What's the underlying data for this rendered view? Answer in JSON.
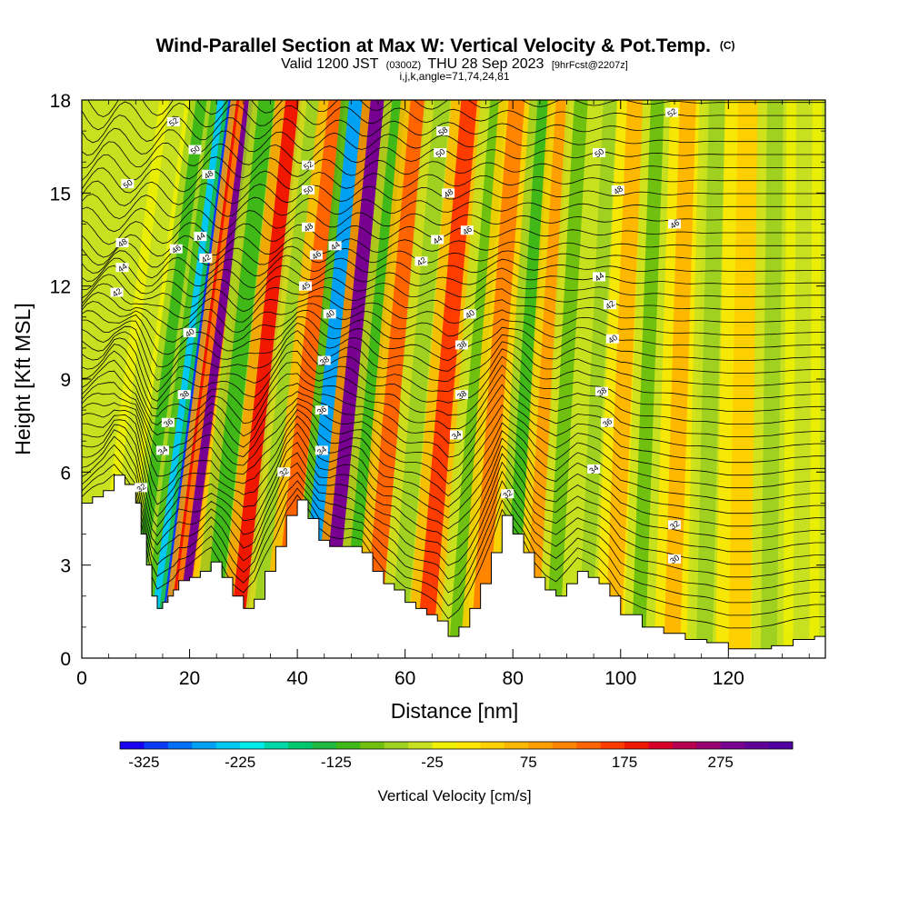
{
  "chart_data": {
    "type": "heatmap",
    "title": "Wind-Parallel Section at Max W: Vertical Velocity & Pot.Temp.",
    "title_suffix": "(C)",
    "subtitle_a": "Valid 1200 JST",
    "subtitle_b": "(0300Z)",
    "subtitle_c": "THU 28 Sep 2023",
    "subtitle_d": "[9hrFcst@2207z]",
    "subtitle2": "i,j,k,angle=71,74,24,81",
    "xlabel": "Distance [nm]",
    "ylabel": "Height [Kft MSL]",
    "xlim": [
      0,
      138
    ],
    "ylim": [
      0,
      18
    ],
    "x_ticks": [
      "0",
      "20",
      "40",
      "60",
      "80",
      "100",
      "120"
    ],
    "x_tick_values": [
      0,
      20,
      40,
      60,
      80,
      100,
      120
    ],
    "y_ticks": [
      "0",
      "3",
      "6",
      "9",
      "12",
      "15",
      "18"
    ],
    "y_tick_values": [
      0,
      3,
      6,
      9,
      12,
      15,
      18
    ],
    "colorbar": {
      "label": "Vertical Velocity [cm/s]",
      "min": -350,
      "max": 350,
      "step": 25,
      "tick_labels": [
        "-325",
        "-225",
        "-125",
        "-25",
        "75",
        "175",
        "275"
      ],
      "tick_values": [
        -325,
        -225,
        -125,
        -25,
        75,
        175,
        275
      ],
      "colors": [
        "#1800f0",
        "#0a3cf6",
        "#0070f8",
        "#00a0f4",
        "#00c8f0",
        "#00ecec",
        "#00d8a8",
        "#00c870",
        "#20b840",
        "#40b818",
        "#70c010",
        "#a0d020",
        "#c8e020",
        "#f0f000",
        "#ffe800",
        "#ffd000",
        "#ffb800",
        "#ffa000",
        "#ff8400",
        "#ff6400",
        "#ff3c00",
        "#f01800",
        "#d80028",
        "#b80050",
        "#980070",
        "#780090",
        "#600098",
        "#5000a0"
      ]
    },
    "terrain_profile": {
      "x": [
        0,
        2,
        4,
        6,
        8,
        10,
        11,
        12,
        13,
        14,
        15,
        16,
        17,
        18,
        20,
        22,
        24,
        26,
        28,
        30,
        32,
        34,
        36,
        38,
        40,
        42,
        44,
        46,
        48,
        50,
        52,
        54,
        56,
        58,
        60,
        62,
        64,
        66,
        68,
        70,
        72,
        74,
        76,
        78,
        80,
        82,
        84,
        86,
        88,
        90,
        92,
        94,
        96,
        98,
        100,
        104,
        108,
        112,
        116,
        120,
        124,
        128,
        132,
        136,
        138
      ],
      "y": [
        5.0,
        5.2,
        5.4,
        5.9,
        5.6,
        5.0,
        4.0,
        3.0,
        2.0,
        1.6,
        1.8,
        2.0,
        2.2,
        2.5,
        2.6,
        2.8,
        3.1,
        2.6,
        2.0,
        1.6,
        1.9,
        2.8,
        3.6,
        4.6,
        5.1,
        4.5,
        3.8,
        3.6,
        3.6,
        3.6,
        3.4,
        2.8,
        2.4,
        2.2,
        1.8,
        1.6,
        1.4,
        1.2,
        0.7,
        1.0,
        1.6,
        2.4,
        3.4,
        4.6,
        4.0,
        3.4,
        2.6,
        2.2,
        2.0,
        2.4,
        2.8,
        2.6,
        2.4,
        2.0,
        1.4,
        1.0,
        0.8,
        0.6,
        0.5,
        0.3,
        0.3,
        0.4,
        0.6,
        0.7,
        0.7
      ]
    },
    "vertical_velocity_bands": [
      {
        "x": 3,
        "w": 3,
        "slant": 2.2,
        "value": -50
      },
      {
        "x": 8,
        "w": 2,
        "slant": 2.2,
        "value": -125
      },
      {
        "x": 12,
        "w": 2,
        "slant": 2.2,
        "value": -250
      },
      {
        "x": 14,
        "w": 1.3,
        "slant": 2.2,
        "value": -325
      },
      {
        "x": 15.5,
        "w": 1.8,
        "slant": 2.2,
        "value": 175
      },
      {
        "x": 17,
        "w": 1.6,
        "slant": 2.2,
        "value": 275
      },
      {
        "x": 20,
        "w": 2,
        "slant": 2.2,
        "value": 100
      },
      {
        "x": 22,
        "w": 3,
        "slant": 1.8,
        "value": -125
      },
      {
        "x": 27,
        "w": 3,
        "slant": 1.8,
        "value": 175
      },
      {
        "x": 31,
        "w": 2.5,
        "slant": 1.8,
        "value": -75
      },
      {
        "x": 35,
        "w": 3,
        "slant": 1.8,
        "value": 125
      },
      {
        "x": 40,
        "w": 2.5,
        "slant": 1.6,
        "value": -275
      },
      {
        "x": 44,
        "w": 2.5,
        "slant": 1.6,
        "value": 275
      },
      {
        "x": 48,
        "w": 2.5,
        "slant": 1.6,
        "value": -125
      },
      {
        "x": 52,
        "w": 3,
        "slant": 1.5,
        "value": 125
      },
      {
        "x": 57,
        "w": 3,
        "slant": 1.4,
        "value": -75
      },
      {
        "x": 62,
        "w": 3,
        "slant": 1.4,
        "value": 150
      },
      {
        "x": 68,
        "w": 3,
        "slant": 1.3,
        "value": -100
      },
      {
        "x": 72,
        "w": 3,
        "slant": 1.2,
        "value": 100
      },
      {
        "x": 78,
        "w": 2.5,
        "slant": 1.1,
        "value": -125
      },
      {
        "x": 82,
        "w": 2.5,
        "slant": 1.0,
        "value": 75
      },
      {
        "x": 86,
        "w": 2.5,
        "slant": 0.9,
        "value": -100
      },
      {
        "x": 92,
        "w": 2.5,
        "slant": 0.8,
        "value": -75
      },
      {
        "x": 97,
        "w": 3,
        "slant": 0.7,
        "value": 50
      },
      {
        "x": 102,
        "w": 2.5,
        "slant": 0.6,
        "value": -100
      },
      {
        "x": 108,
        "w": 3,
        "slant": 0.5,
        "value": 50
      },
      {
        "x": 114,
        "w": 3,
        "slant": 0.4,
        "value": -75
      },
      {
        "x": 120,
        "w": 4,
        "slant": 0.3,
        "value": 25
      },
      {
        "x": 126,
        "w": 3,
        "slant": 0.2,
        "value": -75
      },
      {
        "x": 132,
        "w": 3,
        "slant": 0.1,
        "value": -50
      }
    ],
    "potential_temperature_labels": [
      {
        "text": "52",
        "x": 17,
        "y": 17.3
      },
      {
        "text": "50",
        "x": 21,
        "y": 16.4
      },
      {
        "text": "48",
        "x": 23.5,
        "y": 15.6
      },
      {
        "text": "50",
        "x": 8.5,
        "y": 15.3
      },
      {
        "text": "48",
        "x": 7.5,
        "y": 13.4
      },
      {
        "text": "44",
        "x": 7.5,
        "y": 12.6
      },
      {
        "text": "42",
        "x": 6.5,
        "y": 11.8
      },
      {
        "text": "46",
        "x": 17.5,
        "y": 13.2
      },
      {
        "text": "44",
        "x": 22,
        "y": 13.6
      },
      {
        "text": "42",
        "x": 23,
        "y": 12.9
      },
      {
        "text": "40",
        "x": 20,
        "y": 10.5
      },
      {
        "text": "38",
        "x": 19,
        "y": 8.5
      },
      {
        "text": "36",
        "x": 16,
        "y": 7.6
      },
      {
        "text": "34",
        "x": 15,
        "y": 6.7
      },
      {
        "text": "32",
        "x": 11,
        "y": 5.5
      },
      {
        "text": "52",
        "x": 42,
        "y": 15.9
      },
      {
        "text": "50",
        "x": 42,
        "y": 15.1
      },
      {
        "text": "48",
        "x": 42,
        "y": 13.9
      },
      {
        "text": "46",
        "x": 43.5,
        "y": 13.0
      },
      {
        "text": "44",
        "x": 47,
        "y": 13.3
      },
      {
        "text": "45",
        "x": 41.5,
        "y": 12.0
      },
      {
        "text": "40",
        "x": 46,
        "y": 11.1
      },
      {
        "text": "38",
        "x": 45,
        "y": 9.6
      },
      {
        "text": "36",
        "x": 44.5,
        "y": 8.0
      },
      {
        "text": "34",
        "x": 44.5,
        "y": 6.7
      },
      {
        "text": "32",
        "x": 37.5,
        "y": 6.0
      },
      {
        "text": "58",
        "x": 67,
        "y": 17.0
      },
      {
        "text": "50",
        "x": 66.5,
        "y": 16.3
      },
      {
        "text": "48",
        "x": 68,
        "y": 15.0
      },
      {
        "text": "46",
        "x": 71.5,
        "y": 13.8
      },
      {
        "text": "44",
        "x": 66,
        "y": 13.5
      },
      {
        "text": "42",
        "x": 63,
        "y": 12.8
      },
      {
        "text": "40",
        "x": 72,
        "y": 11.1
      },
      {
        "text": "38",
        "x": 70.5,
        "y": 10.1
      },
      {
        "text": "38",
        "x": 70.5,
        "y": 8.5
      },
      {
        "text": "34",
        "x": 69.5,
        "y": 7.2
      },
      {
        "text": "32",
        "x": 79,
        "y": 5.3
      },
      {
        "text": "52",
        "x": 109.5,
        "y": 17.6
      },
      {
        "text": "50",
        "x": 96,
        "y": 16.3
      },
      {
        "text": "48",
        "x": 99.5,
        "y": 15.1
      },
      {
        "text": "46",
        "x": 110,
        "y": 14.0
      },
      {
        "text": "44",
        "x": 96,
        "y": 12.3
      },
      {
        "text": "42",
        "x": 98,
        "y": 11.4
      },
      {
        "text": "40",
        "x": 98.5,
        "y": 10.3
      },
      {
        "text": "38",
        "x": 96.5,
        "y": 8.6
      },
      {
        "text": "36",
        "x": 97.5,
        "y": 7.6
      },
      {
        "text": "34",
        "x": 95,
        "y": 6.1
      },
      {
        "text": "32",
        "x": 110,
        "y": 4.3
      },
      {
        "text": "30",
        "x": 110,
        "y": 3.2
      }
    ]
  }
}
